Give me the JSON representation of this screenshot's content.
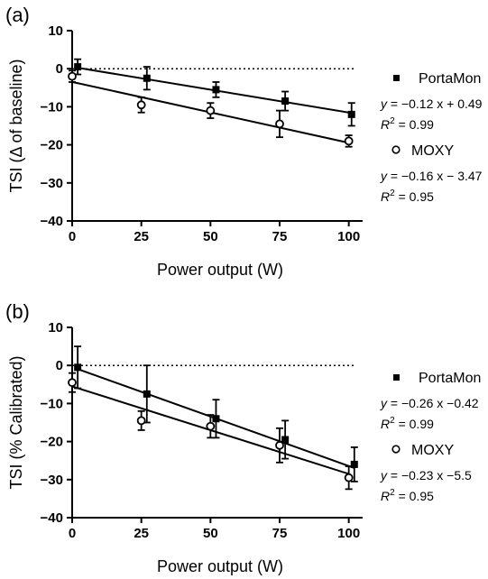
{
  "chart_data": [
    {
      "type": "scatter",
      "panel_label": "(a)",
      "xlabel": "Power output (W)",
      "ylabel": "TSI (Δ of baseline)",
      "xlim": [
        0,
        105
      ],
      "ylim": [
        -40,
        10
      ],
      "xticks": [
        0,
        25,
        50,
        75,
        100
      ],
      "yticks": [
        10,
        0,
        -10,
        -20,
        -30,
        -40
      ],
      "x_tick_labels": [
        "0",
        "25",
        "50",
        "75",
        "100"
      ],
      "y_tick_labels": [
        "10",
        "0",
        "−10",
        "−20",
        "−30",
        "−40"
      ],
      "reference_line_y": 0,
      "legend_position": "right",
      "series": [
        {
          "name": "PortaMon",
          "marker": "filled-square",
          "x": [
            2,
            27,
            52,
            77,
            101
          ],
          "y": [
            0.5,
            -2.5,
            -5.5,
            -8.5,
            -12
          ],
          "error": [
            2.0,
            3.0,
            2.0,
            2.5,
            3.0
          ],
          "fit": {
            "slope": -0.12,
            "intercept": 0.49
          },
          "equation": {
            "y_var": "y",
            "rhs": " = −0.12 x + 0.49",
            "r2_var": "R",
            "r2_sup": "2",
            "r2_rhs": " = 0.99"
          }
        },
        {
          "name": "MOXY",
          "marker": "open-circle",
          "x": [
            0,
            25,
            50,
            75,
            100
          ],
          "y": [
            -2,
            -9.5,
            -11,
            -14.5,
            -19
          ],
          "error": [
            1.5,
            2.0,
            2.0,
            3.5,
            1.5
          ],
          "fit": {
            "slope": -0.16,
            "intercept": -3.47
          },
          "equation": {
            "y_var": "y",
            "rhs": " = −0.16 x − 3.47",
            "r2_var": "R",
            "r2_sup": "2",
            "r2_rhs": " = 0.95"
          }
        }
      ]
    },
    {
      "type": "scatter",
      "panel_label": "(b)",
      "xlabel": "Power output (W)",
      "ylabel": "TSI (% Calibrated)",
      "xlim": [
        0,
        105
      ],
      "ylim": [
        -40,
        10
      ],
      "xticks": [
        0,
        25,
        50,
        75,
        100
      ],
      "yticks": [
        10,
        0,
        -10,
        -20,
        -30,
        -40
      ],
      "x_tick_labels": [
        "0",
        "25",
        "50",
        "75",
        "100"
      ],
      "y_tick_labels": [
        "10",
        "0",
        "−10",
        "−20",
        "−30",
        "−40"
      ],
      "reference_line_y": 0,
      "legend_position": "right",
      "series": [
        {
          "name": "PortaMon",
          "marker": "filled-square",
          "x": [
            2,
            27,
            52,
            77,
            102
          ],
          "y": [
            -0.5,
            -7.5,
            -14,
            -19.5,
            -26
          ],
          "error": [
            5.5,
            7.5,
            5.0,
            5.0,
            4.5
          ],
          "fit": {
            "slope": -0.26,
            "intercept": -0.42
          },
          "equation": {
            "y_var": "y",
            "rhs": " = −0.26 x −0.42",
            "r2_var": "R",
            "r2_sup": "2",
            "r2_rhs": " = 0.99"
          }
        },
        {
          "name": "MOXY",
          "marker": "open-circle",
          "x": [
            0,
            25,
            50,
            75,
            100
          ],
          "y": [
            -4.5,
            -14.5,
            -16,
            -21,
            -29.5
          ],
          "error": [
            2.5,
            2.5,
            3.0,
            4.5,
            3.0
          ],
          "fit": {
            "slope": -0.23,
            "intercept": -5.5
          },
          "equation": {
            "y_var": "y",
            "rhs": " = −0.23 x −5.5",
            "r2_var": "R",
            "r2_sup": "2",
            "r2_rhs": " = 0.95"
          }
        }
      ]
    }
  ]
}
